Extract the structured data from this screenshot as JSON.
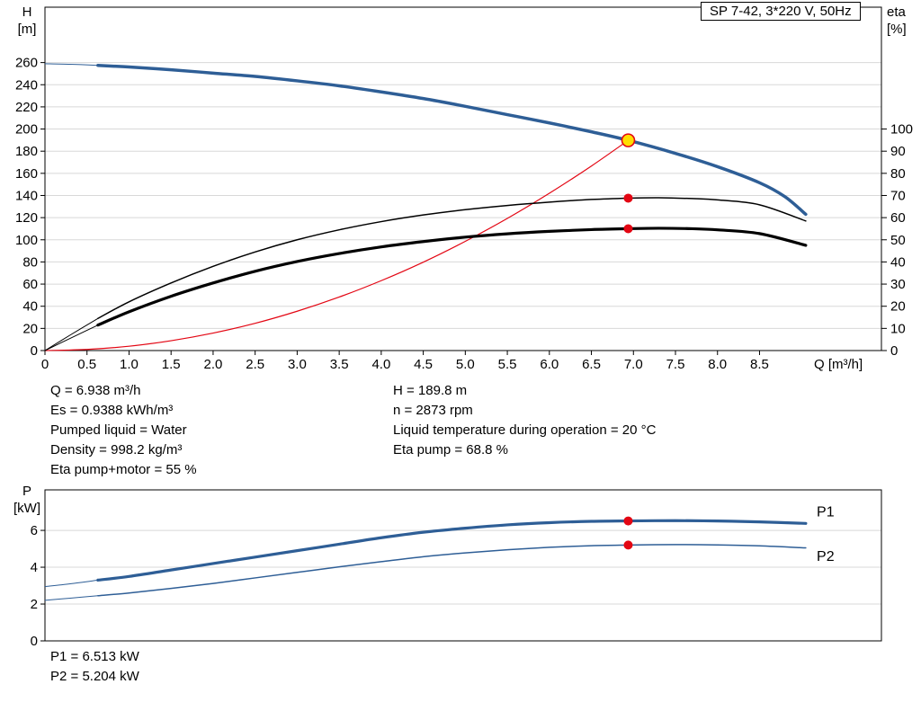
{
  "colors": {
    "curve_blue": "#2e5e96",
    "curve_red": "#e30613",
    "curve_black": "#000000",
    "duty_yellow": "#ffdd00",
    "grid": "#d8d8d8",
    "frame": "#000000",
    "label_blue": "#2e5e96"
  },
  "info_block": {
    "left": [
      "Q = 6.938 m³/h",
      "Es = 0.9388 kWh/m³",
      "Pumped liquid = Water",
      "Density = 998.2 kg/m³",
      "Eta pump+motor = 55 %"
    ],
    "right": [
      "H = 189.8 m",
      "n = 2873 rpm",
      "Liquid temperature during operation = 20 °C",
      "Eta pump = 68.8 %"
    ]
  },
  "power_block": {
    "lines": [
      "P1 = 6.513 kW",
      "P2 = 5.204 kW"
    ]
  },
  "chart_data": [
    {
      "id": "hq-eta-chart",
      "type": "line",
      "title": "SP 7-42, 3*220 V, 50Hz",
      "x_axis": {
        "label": "Q [m³/h]",
        "min": 0,
        "max": 9.95,
        "tick_labels": [
          "0",
          "0.5",
          "1.0",
          "1.5",
          "2.0",
          "2.5",
          "3.0",
          "3.5",
          "4.0",
          "4.5",
          "5.0",
          "5.5",
          "6.0",
          "6.5",
          "7.0",
          "7.5",
          "8.0",
          "8.5"
        ]
      },
      "y_left_axis": {
        "label": [
          "H",
          "[m]"
        ],
        "min": 0,
        "max": 310,
        "ticks": [
          0,
          20,
          40,
          60,
          80,
          100,
          120,
          140,
          160,
          180,
          200,
          220,
          240,
          260
        ]
      },
      "y_right_axis": {
        "label": [
          "eta",
          "[%]"
        ],
        "ticks": [
          0,
          10,
          20,
          30,
          40,
          50,
          60,
          70,
          80,
          90,
          100
        ],
        "left_units_per_unit": 2
      },
      "duty_point": {
        "Q": 6.938,
        "H": 189.8,
        "eta_pump": 68.8,
        "eta_pump_motor": 55
      },
      "series": [
        {
          "name": "head-curve",
          "color": "#2e5e96",
          "width": 3.5,
          "axis": "left",
          "thin_split": 0.63,
          "points": [
            [
              0,
              259
            ],
            [
              0.3,
              258.5
            ],
            [
              0.63,
              257.5
            ],
            [
              1,
              256
            ],
            [
              1.5,
              253.5
            ],
            [
              2,
              250.5
            ],
            [
              2.5,
              247.5
            ],
            [
              3,
              243.5
            ],
            [
              3.5,
              239
            ],
            [
              4,
              233.5
            ],
            [
              4.5,
              227.5
            ],
            [
              5,
              220.5
            ],
            [
              5.5,
              213
            ],
            [
              6,
              205.5
            ],
            [
              6.5,
              197.5
            ],
            [
              6.938,
              189.8
            ],
            [
              7.5,
              178
            ],
            [
              8,
              166
            ],
            [
              8.5,
              151.5
            ],
            [
              8.8,
              139
            ],
            [
              9.05,
              123
            ]
          ]
        },
        {
          "name": "system-curve",
          "color": "#e30613",
          "width": 1.2,
          "axis": "left",
          "points": [
            [
              0,
              0
            ],
            [
              0.5,
              1
            ],
            [
              1,
              3.9
            ],
            [
              1.5,
              8.9
            ],
            [
              2,
              15.8
            ],
            [
              2.5,
              24.6
            ],
            [
              3,
              35.5
            ],
            [
              3.5,
              48.3
            ],
            [
              4,
              63.1
            ],
            [
              4.5,
              79.8
            ],
            [
              5,
              98.6
            ],
            [
              5.5,
              119.3
            ],
            [
              6,
              142
            ],
            [
              6.5,
              166.6
            ],
            [
              6.938,
              189.8
            ]
          ]
        },
        {
          "name": "eta-pump-curve",
          "color": "#000000",
          "width": 1.5,
          "axis": "right",
          "thin_split": 0.63,
          "points": [
            [
              0,
              0
            ],
            [
              0.3,
              7
            ],
            [
              0.63,
              14.5
            ],
            [
              1,
              22
            ],
            [
              1.5,
              30.5
            ],
            [
              2,
              38
            ],
            [
              2.5,
              44.5
            ],
            [
              3,
              50
            ],
            [
              3.5,
              54.5
            ],
            [
              4,
              58.2
            ],
            [
              4.5,
              61.2
            ],
            [
              5,
              63.6
            ],
            [
              5.5,
              65.5
            ],
            [
              6,
              67
            ],
            [
              6.5,
              68.2
            ],
            [
              6.938,
              68.8
            ],
            [
              7.3,
              69
            ],
            [
              7.7,
              68.6
            ],
            [
              8,
              68
            ],
            [
              8.5,
              65.8
            ],
            [
              9.05,
              58.5
            ]
          ]
        },
        {
          "name": "eta-pump-motor-curve",
          "color": "#000000",
          "width": 3.2,
          "axis": "right",
          "thin_split": 0.63,
          "points": [
            [
              0,
              0
            ],
            [
              0.3,
              5.5
            ],
            [
              0.63,
              11.5
            ],
            [
              1,
              17.5
            ],
            [
              1.5,
              24.5
            ],
            [
              2,
              30.5
            ],
            [
              2.5,
              35.8
            ],
            [
              3,
              40.2
            ],
            [
              3.5,
              43.8
            ],
            [
              4,
              46.8
            ],
            [
              4.5,
              49.2
            ],
            [
              5,
              51.2
            ],
            [
              5.5,
              52.7
            ],
            [
              6,
              53.8
            ],
            [
              6.5,
              54.6
            ],
            [
              6.938,
              55
            ],
            [
              7.3,
              55.2
            ],
            [
              7.7,
              55
            ],
            [
              8,
              54.5
            ],
            [
              8.5,
              52.8
            ],
            [
              9.05,
              47.5
            ]
          ]
        }
      ],
      "markers": [
        {
          "name": "duty-point-marker",
          "x": 6.938,
          "y": 189.8,
          "axis": "left",
          "r": 7,
          "fill": "#ffdd00",
          "stroke": "#e30613"
        },
        {
          "name": "eta-pump-marker",
          "x": 6.938,
          "y": 68.8,
          "axis": "right",
          "r": 5,
          "fill": "#e30613"
        },
        {
          "name": "eta-pump-motor-marker",
          "x": 6.938,
          "y": 55,
          "axis": "right",
          "r": 5,
          "fill": "#e30613"
        }
      ],
      "series_labels": []
    },
    {
      "id": "power-chart",
      "type": "line",
      "x_axis": {
        "min": 0,
        "max": 9.95
      },
      "y_left_axis": {
        "label": [
          "P",
          "[kW]"
        ],
        "min": 0,
        "max": 8.2,
        "ticks": [
          0,
          2,
          4,
          6
        ]
      },
      "duty_point": {
        "Q": 6.938,
        "P1": 6.513,
        "P2": 5.204
      },
      "series": [
        {
          "name": "p1-curve",
          "color": "#2e5e96",
          "width": 3.2,
          "axis": "left",
          "thin_split": 0.63,
          "points": [
            [
              0,
              2.95
            ],
            [
              0.3,
              3.1
            ],
            [
              0.63,
              3.3
            ],
            [
              1,
              3.5
            ],
            [
              1.5,
              3.85
            ],
            [
              2,
              4.2
            ],
            [
              2.5,
              4.55
            ],
            [
              3,
              4.9
            ],
            [
              3.5,
              5.25
            ],
            [
              4,
              5.6
            ],
            [
              4.5,
              5.9
            ],
            [
              5,
              6.12
            ],
            [
              5.5,
              6.3
            ],
            [
              6,
              6.42
            ],
            [
              6.5,
              6.49
            ],
            [
              6.938,
              6.513
            ],
            [
              7.5,
              6.53
            ],
            [
              8,
              6.51
            ],
            [
              8.5,
              6.46
            ],
            [
              9.05,
              6.38
            ]
          ]
        },
        {
          "name": "p2-curve",
          "color": "#2e5e96",
          "width": 1.5,
          "axis": "left",
          "thin_split": 0.63,
          "points": [
            [
              0,
              2.2
            ],
            [
              0.3,
              2.32
            ],
            [
              0.63,
              2.45
            ],
            [
              1,
              2.6
            ],
            [
              1.5,
              2.85
            ],
            [
              2,
              3.12
            ],
            [
              2.5,
              3.42
            ],
            [
              3,
              3.72
            ],
            [
              3.5,
              4.02
            ],
            [
              4,
              4.3
            ],
            [
              4.5,
              4.57
            ],
            [
              5,
              4.78
            ],
            [
              5.5,
              4.95
            ],
            [
              6,
              5.08
            ],
            [
              6.5,
              5.17
            ],
            [
              6.938,
              5.204
            ],
            [
              7.5,
              5.23
            ],
            [
              8,
              5.21
            ],
            [
              8.5,
              5.16
            ],
            [
              9.05,
              5.05
            ]
          ]
        }
      ],
      "markers": [
        {
          "name": "p1-marker",
          "x": 6.938,
          "y": 6.513,
          "axis": "left",
          "r": 5,
          "fill": "#e30613"
        },
        {
          "name": "p2-marker",
          "x": 6.938,
          "y": 5.204,
          "axis": "left",
          "r": 5,
          "fill": "#e30613"
        }
      ],
      "series_labels": [
        {
          "text": "P1",
          "x": 9.18,
          "y": 6.75,
          "color": "#2e5e96"
        },
        {
          "text": "P2",
          "x": 9.18,
          "y": 4.35,
          "color": "#2e5e96"
        }
      ]
    }
  ]
}
